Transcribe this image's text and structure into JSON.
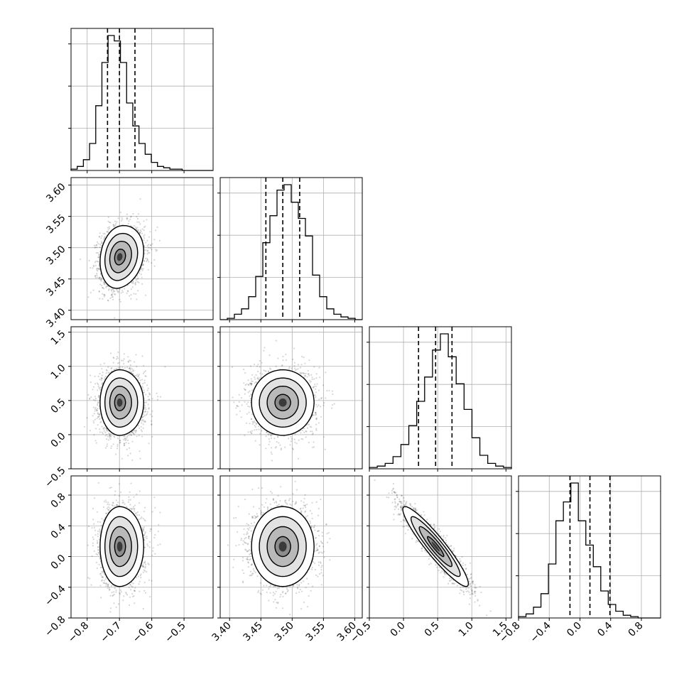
{
  "chart_data": {
    "type": "scatter",
    "subtype": "corner",
    "dimensions": 4,
    "title": "",
    "parameter_labels": [
      "",
      "",
      "",
      ""
    ],
    "axes": [
      {
        "range": [
          -0.85,
          -0.41
        ],
        "ticks": [
          -0.8,
          -0.7,
          -0.6,
          -0.5
        ],
        "tick_labels": [
          "−0.8",
          "−0.7",
          "−0.6",
          "−0.5"
        ]
      },
      {
        "range": [
          3.385,
          3.612
        ],
        "ticks": [
          3.4,
          3.45,
          3.5,
          3.55,
          3.6
        ],
        "tick_labels": [
          "3.40",
          "3.45",
          "3.50",
          "3.55",
          "3.60"
        ]
      },
      {
        "range": [
          -0.5,
          1.58
        ],
        "ticks": [
          -0.5,
          0.0,
          0.5,
          1.0,
          1.5
        ],
        "tick_labels": [
          "−0.5",
          "0.0",
          "0.5",
          "1.0",
          "1.5"
        ]
      },
      {
        "range": [
          -0.8,
          1.05
        ],
        "ticks": [
          -0.8,
          -0.4,
          0.0,
          0.4,
          0.8
        ],
        "tick_labels": [
          "−0.8",
          "−0.4",
          "0.0",
          "0.4",
          "0.8"
        ]
      }
    ],
    "marginals": [
      {
        "quantiles": [
          -0.737,
          -0.7,
          -0.652
        ],
        "counts": [
          1,
          3,
          8,
          20,
          48,
          80,
          100,
          96,
          80,
          50,
          33,
          20,
          12,
          6,
          3,
          2,
          1,
          1,
          0,
          0,
          0,
          0,
          0
        ]
      },
      {
        "quantiles": [
          3.458,
          3.485,
          3.512
        ],
        "counts": [
          0,
          1,
          4,
          8,
          17,
          32,
          57,
          77,
          96,
          100,
          87,
          75,
          62,
          33,
          17,
          8,
          4,
          2,
          1,
          0
        ]
      },
      {
        "quantiles": [
          0.22,
          0.47,
          0.71
        ],
        "counts": [
          1,
          2,
          4,
          9,
          18,
          32,
          50,
          68,
          88,
          100,
          83,
          63,
          44,
          23,
          10,
          4,
          2,
          1
        ]
      },
      {
        "quantiles": [
          -0.13,
          0.13,
          0.39
        ],
        "counts": [
          1,
          3,
          8,
          18,
          40,
          72,
          86,
          100,
          72,
          54,
          38,
          20,
          10,
          5,
          2,
          1,
          0,
          0,
          0
        ]
      }
    ],
    "pairs": [
      {
        "x_dim": 0,
        "y_dim": 1,
        "mean": [
          -0.7,
          3.485
        ],
        "sd": [
          0.03,
          0.025
        ],
        "corr": 0.15,
        "skew_x": 0.5
      },
      {
        "x_dim": 0,
        "y_dim": 2,
        "mean": [
          -0.7,
          0.47
        ],
        "sd": [
          0.03,
          0.24
        ],
        "corr": 0.0,
        "skew_x": 0.5
      },
      {
        "x_dim": 1,
        "y_dim": 2,
        "mean": [
          3.485,
          0.47
        ],
        "sd": [
          0.025,
          0.24
        ],
        "corr": 0.0,
        "skew_x": 0.0
      },
      {
        "x_dim": 0,
        "y_dim": 3,
        "mean": [
          -0.7,
          0.13
        ],
        "sd": [
          0.03,
          0.26
        ],
        "corr": 0.0,
        "skew_x": 0.5
      },
      {
        "x_dim": 1,
        "y_dim": 3,
        "mean": [
          3.485,
          0.13
        ],
        "sd": [
          0.025,
          0.26
        ],
        "corr": 0.0,
        "skew_x": 0.0
      },
      {
        "x_dim": 2,
        "y_dim": 3,
        "mean": [
          0.47,
          0.13
        ],
        "sd": [
          0.24,
          0.26
        ],
        "corr": -0.93,
        "skew_x": 0.0
      }
    ],
    "contour_levels_sigma": [
      0.5,
      1.0,
      1.5,
      2.0
    ],
    "grid": true,
    "legend": "none"
  }
}
